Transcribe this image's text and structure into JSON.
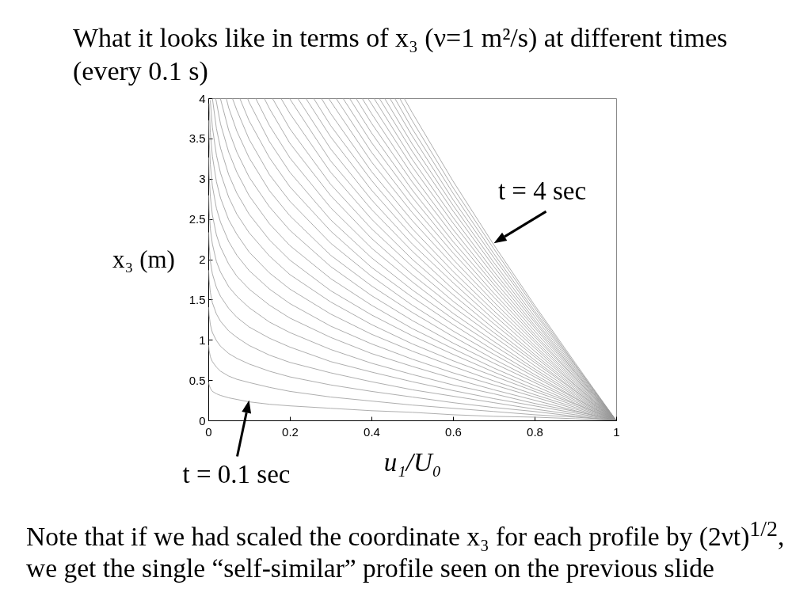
{
  "chart_data": {
    "type": "line",
    "title": "What it looks like in terms of x₃ (ν=1 m²/s) at different times (every 0.1 s)",
    "xlabel": "u₁/U₀",
    "ylabel": "x₃ (m)",
    "xlim": [
      0,
      1
    ],
    "ylim": [
      0,
      4
    ],
    "xticks": [
      0,
      0.2,
      0.4,
      0.6,
      0.8,
      1
    ],
    "yticks": [
      0,
      0.5,
      1,
      1.5,
      2,
      2.5,
      3,
      3.5,
      4
    ],
    "annotations": [
      {
        "text": "t = 4 sec",
        "x": 0.7,
        "y": 2.2
      },
      {
        "text": "t = 0.1 sec",
        "x": 0.1,
        "y": 0.25
      },
      "Note that if we had scaled the coordinate x₃ for each profile by (2νt)$^{1/2}$, we get the single “self-similar” profile seen on the previous slide"
    ],
    "series": [
      {
        "color": "#999999",
        "x": [
          1,
          0.9,
          0.8,
          0.7,
          0.6,
          0.5,
          0.4,
          0.3,
          0.2,
          0.15,
          0.1,
          0.07,
          0.05,
          0.03,
          0.02,
          0.01,
          0.005,
          0.002,
          0.001
        ],
        "values": [
          0,
          0.02,
          0.04,
          0.05,
          0.07,
          0.1,
          0.12,
          0.15,
          0.18,
          0.2,
          0.23,
          0.26,
          0.28,
          0.31,
          0.33,
          0.36,
          0.4,
          0.44,
          0.47
        ]
      },
      {
        "color": "#999999",
        "x": [
          1,
          0.9,
          0.8,
          0.7,
          0.6,
          0.5,
          0.4,
          0.3,
          0.2,
          0.15,
          0.1,
          0.07,
          0.05,
          0.03,
          0.02,
          0.01,
          0.005,
          0.002,
          0.001
        ],
        "values": [
          0,
          0.04,
          0.07,
          0.11,
          0.15,
          0.19,
          0.24,
          0.29,
          0.36,
          0.41,
          0.47,
          0.51,
          0.55,
          0.61,
          0.66,
          0.73,
          0.79,
          0.87,
          0.93
        ]
      },
      {
        "color": "#999999",
        "x": [
          1,
          0.9,
          0.8,
          0.7,
          0.6,
          0.5,
          0.4,
          0.3,
          0.2,
          0.15,
          0.1,
          0.07,
          0.05,
          0.03,
          0.02,
          0.01,
          0.005,
          0.002,
          0.001
        ],
        "values": [
          0,
          0.05,
          0.11,
          0.16,
          0.22,
          0.29,
          0.36,
          0.44,
          0.54,
          0.61,
          0.7,
          0.77,
          0.83,
          0.92,
          0.99,
          1.09,
          1.19,
          1.31,
          1.4
        ]
      },
      {
        "color": "#999999",
        "x": [
          1,
          0.9,
          0.8,
          0.7,
          0.6,
          0.5,
          0.4,
          0.3,
          0.2,
          0.15,
          0.1,
          0.07,
          0.05,
          0.03,
          0.02,
          0.01,
          0.005,
          0.002,
          0.001
        ],
        "values": [
          0,
          0.07,
          0.14,
          0.22,
          0.3,
          0.38,
          0.48,
          0.59,
          0.72,
          0.81,
          0.93,
          1.03,
          1.11,
          1.23,
          1.32,
          1.46,
          1.59,
          1.75,
          1.86
        ]
      },
      {
        "color": "#999999",
        "x": [
          1,
          0.9,
          0.8,
          0.7,
          0.6,
          0.5,
          0.4,
          0.3,
          0.2,
          0.15,
          0.1,
          0.07,
          0.05,
          0.03,
          0.02,
          0.01,
          0.005,
          0.002,
          0.001
        ],
        "values": [
          0,
          0.09,
          0.18,
          0.27,
          0.37,
          0.48,
          0.6,
          0.73,
          0.91,
          1.02,
          1.16,
          1.28,
          1.39,
          1.54,
          1.65,
          1.82,
          1.98,
          2.19,
          2.33
        ]
      },
      {
        "color": "#999999",
        "x": [
          1,
          0.9,
          0.8,
          0.7,
          0.6,
          0.5,
          0.4,
          0.3,
          0.2,
          0.15,
          0.1,
          0.07,
          0.05,
          0.03,
          0.02,
          0.01,
          0.005,
          0.002,
          0.001
        ],
        "values": [
          0,
          0.11,
          0.21,
          0.33,
          0.44,
          0.57,
          0.71,
          0.88,
          1.09,
          1.22,
          1.4,
          1.54,
          1.66,
          1.84,
          1.97,
          2.19,
          2.38,
          2.62,
          2.79
        ]
      },
      {
        "color": "#999999",
        "x": [
          1,
          0.9,
          0.8,
          0.7,
          0.6,
          0.5,
          0.4,
          0.3,
          0.2,
          0.15,
          0.1,
          0.07,
          0.05,
          0.03,
          0.02,
          0.01,
          0.005,
          0.002,
          0.001
        ],
        "values": [
          0,
          0.12,
          0.25,
          0.38,
          0.52,
          0.67,
          0.83,
          1.03,
          1.27,
          1.43,
          1.63,
          1.79,
          1.94,
          2.15,
          2.3,
          2.55,
          2.78,
          3.06,
          3.26
        ]
      },
      {
        "color": "#999999",
        "x": [
          1,
          0.9,
          0.8,
          0.7,
          0.6,
          0.5,
          0.4,
          0.3,
          0.2,
          0.15,
          0.1,
          0.07,
          0.05,
          0.03,
          0.02,
          0.01,
          0.005,
          0.002,
          0.001
        ],
        "values": [
          0,
          0.14,
          0.29,
          0.44,
          0.59,
          0.76,
          0.95,
          1.17,
          1.45,
          1.63,
          1.86,
          2.05,
          2.22,
          2.46,
          2.63,
          2.91,
          3.18,
          3.5,
          3.72
        ]
      },
      {
        "color": "#999999",
        "x": [
          1,
          0.9,
          0.8,
          0.7,
          0.6,
          0.5,
          0.4,
          0.3,
          0.2,
          0.15,
          0.1,
          0.07,
          0.05,
          0.03,
          0.02,
          0.01,
          0.005,
          0.002
        ],
        "values": [
          0,
          0.16,
          0.32,
          0.49,
          0.67,
          0.86,
          1.07,
          1.32,
          1.63,
          1.83,
          2.09,
          2.31,
          2.49,
          2.76,
          2.96,
          3.28,
          3.57,
          3.93
        ]
      },
      {
        "color": "#999999",
        "x": [
          1,
          0.9,
          0.8,
          0.7,
          0.6,
          0.5,
          0.4,
          0.3,
          0.2,
          0.15,
          0.1,
          0.07,
          0.05,
          0.03,
          0.02,
          0.01,
          0.005
        ],
        "values": [
          0,
          0.18,
          0.36,
          0.55,
          0.74,
          0.95,
          1.19,
          1.47,
          1.81,
          2.04,
          2.33,
          2.56,
          2.77,
          3.07,
          3.29,
          3.64,
          3.97
        ]
      },
      {
        "color": "#999999",
        "x": [
          1,
          0.9,
          0.8,
          0.7,
          0.6,
          0.5,
          0.4,
          0.3,
          0.2,
          0.15,
          0.1,
          0.07,
          0.05,
          0.03,
          0.02,
          0.01
        ],
        "values": [
          0,
          0.2,
          0.39,
          0.6,
          0.82,
          1.05,
          1.31,
          1.61,
          1.99,
          2.24,
          2.56,
          2.82,
          3.05,
          3.38,
          3.62,
          4
        ]
      },
      {
        "color": "#999999",
        "x": [
          1,
          0.9,
          0.8,
          0.7,
          0.6,
          0.5,
          0.4,
          0.3,
          0.2,
          0.15,
          0.1,
          0.07,
          0.05,
          0.03,
          0.02,
          0.018
        ],
        "values": [
          0,
          0.21,
          0.43,
          0.65,
          0.89,
          1.14,
          1.43,
          1.76,
          2.17,
          2.44,
          2.79,
          3.08,
          3.33,
          3.68,
          3.95,
          4
        ]
      },
      {
        "color": "#999999",
        "x": [
          1,
          0.9,
          0.8,
          0.7,
          0.6,
          0.5,
          0.4,
          0.3,
          0.2,
          0.15,
          0.1,
          0.07,
          0.05,
          0.03,
          0.03
        ],
        "values": [
          0,
          0.23,
          0.47,
          0.71,
          0.96,
          1.24,
          1.55,
          1.91,
          2.36,
          2.65,
          3.02,
          3.33,
          3.6,
          3.99,
          4
        ]
      },
      {
        "color": "#999999",
        "x": [
          1,
          0.9,
          0.8,
          0.7,
          0.6,
          0.5,
          0.4,
          0.3,
          0.2,
          0.15,
          0.1,
          0.07,
          0.05,
          0.044
        ],
        "values": [
          0,
          0.25,
          0.5,
          0.76,
          1.04,
          1.34,
          1.67,
          2.05,
          2.54,
          2.85,
          3.26,
          3.59,
          3.88,
          4
        ]
      },
      {
        "color": "#999999",
        "x": [
          1,
          0.9,
          0.8,
          0.7,
          0.6,
          0.5,
          0.4,
          0.3,
          0.2,
          0.15,
          0.1,
          0.07,
          0.059
        ],
        "values": [
          0,
          0.27,
          0.54,
          0.82,
          1.11,
          1.43,
          1.79,
          2.2,
          2.72,
          3.05,
          3.49,
          3.85,
          4
        ]
      },
      {
        "color": "#999999",
        "x": [
          1,
          0.9,
          0.8,
          0.7,
          0.6,
          0.5,
          0.4,
          0.3,
          0.2,
          0.15,
          0.1,
          0.077
        ],
        "values": [
          0,
          0.28,
          0.57,
          0.87,
          1.19,
          1.53,
          1.9,
          2.35,
          2.9,
          3.26,
          3.72,
          4
        ]
      },
      {
        "color": "#999999",
        "x": [
          1,
          0.9,
          0.8,
          0.7,
          0.6,
          0.5,
          0.4,
          0.3,
          0.2,
          0.15,
          0.1,
          0.096
        ],
        "values": [
          0,
          0.3,
          0.61,
          0.93,
          1.26,
          1.62,
          2.02,
          2.49,
          3.08,
          3.46,
          3.95,
          4
        ]
      },
      {
        "color": "#999999",
        "x": [
          1,
          0.9,
          0.8,
          0.7,
          0.6,
          0.5,
          0.4,
          0.3,
          0.2,
          0.15,
          0.116
        ],
        "values": [
          0,
          0.32,
          0.64,
          0.98,
          1.33,
          1.72,
          2.14,
          2.64,
          3.26,
          3.66,
          4
        ]
      },
      {
        "color": "#999999",
        "x": [
          1,
          0.9,
          0.8,
          0.7,
          0.6,
          0.5,
          0.4,
          0.3,
          0.2,
          0.15,
          0.137
        ],
        "values": [
          0,
          0.34,
          0.68,
          1.04,
          1.41,
          1.81,
          2.26,
          2.79,
          3.44,
          3.87,
          4
        ]
      },
      {
        "color": "#999999",
        "x": [
          1,
          0.9,
          0.8,
          0.7,
          0.6,
          0.5,
          0.4,
          0.3,
          0.2,
          0.157
        ],
        "values": [
          0,
          0.36,
          0.72,
          1.09,
          1.48,
          1.91,
          2.38,
          2.93,
          3.62,
          4
        ]
      },
      {
        "color": "#999999",
        "x": [
          1,
          0.9,
          0.8,
          0.7,
          0.6,
          0.5,
          0.4,
          0.3,
          0.2,
          0.178
        ],
        "values": [
          0,
          0.37,
          0.75,
          1.14,
          1.56,
          2.0,
          2.5,
          3.08,
          3.81,
          4
        ]
      },
      {
        "color": "#999999",
        "x": [
          1,
          0.9,
          0.8,
          0.7,
          0.6,
          0.5,
          0.4,
          0.3,
          0.2,
          0.199
        ],
        "values": [
          0,
          0.39,
          0.79,
          1.2,
          1.63,
          2.1,
          2.62,
          3.22,
          3.99,
          4
        ]
      },
      {
        "color": "#999999",
        "x": [
          1,
          0.9,
          0.8,
          0.7,
          0.6,
          0.5,
          0.4,
          0.3,
          0.219
        ],
        "values": [
          0,
          0.41,
          0.82,
          1.25,
          1.71,
          2.19,
          2.74,
          3.37,
          4
        ]
      },
      {
        "color": "#999999",
        "x": [
          1,
          0.9,
          0.8,
          0.7,
          0.6,
          0.5,
          0.4,
          0.3,
          0.239
        ],
        "values": [
          0,
          0.43,
          0.86,
          1.31,
          1.78,
          2.29,
          2.86,
          3.52,
          4
        ]
      },
      {
        "color": "#999999",
        "x": [
          1,
          0.9,
          0.8,
          0.7,
          0.6,
          0.5,
          0.4,
          0.3,
          0.258
        ],
        "values": [
          0,
          0.44,
          0.9,
          1.36,
          1.85,
          2.38,
          2.98,
          3.66,
          4
        ]
      },
      {
        "color": "#999999",
        "x": [
          1,
          0.9,
          0.8,
          0.7,
          0.6,
          0.5,
          0.4,
          0.3,
          0.277
        ],
        "values": [
          0,
          0.46,
          0.93,
          1.42,
          1.93,
          2.48,
          3.09,
          3.81,
          4
        ]
      },
      {
        "color": "#999999",
        "x": [
          1,
          0.9,
          0.8,
          0.7,
          0.6,
          0.5,
          0.4,
          0.3,
          0.295
        ],
        "values": [
          0,
          0.48,
          0.97,
          1.47,
          2.0,
          2.58,
          3.21,
          3.96,
          4
        ]
      },
      {
        "color": "#999999",
        "x": [
          1,
          0.9,
          0.8,
          0.7,
          0.6,
          0.5,
          0.4,
          0.313
        ],
        "values": [
          0,
          0.5,
          1.0,
          1.53,
          2.08,
          2.67,
          3.33,
          4
        ]
      },
      {
        "color": "#999999",
        "x": [
          1,
          0.9,
          0.8,
          0.7,
          0.6,
          0.5,
          0.4,
          0.33
        ],
        "values": [
          0,
          0.52,
          1.04,
          1.58,
          2.15,
          2.77,
          3.45,
          4
        ]
      },
      {
        "color": "#999999",
        "x": [
          1,
          0.9,
          0.8,
          0.7,
          0.6,
          0.5,
          0.4,
          0.346
        ],
        "values": [
          0,
          0.53,
          1.07,
          1.64,
          2.22,
          2.86,
          3.57,
          4
        ]
      },
      {
        "color": "#999999",
        "x": [
          1,
          0.9,
          0.8,
          0.7,
          0.6,
          0.5,
          0.4,
          0.362
        ],
        "values": [
          0,
          0.55,
          1.11,
          1.69,
          2.3,
          2.96,
          3.69,
          4
        ]
      },
      {
        "color": "#999999",
        "x": [
          1,
          0.9,
          0.8,
          0.7,
          0.6,
          0.5,
          0.4,
          0.377
        ],
        "values": [
          0,
          0.57,
          1.15,
          1.74,
          2.37,
          3.05,
          3.81,
          4
        ]
      },
      {
        "color": "#999999",
        "x": [
          1,
          0.9,
          0.8,
          0.7,
          0.6,
          0.5,
          0.4,
          0.391
        ],
        "values": [
          0,
          0.59,
          1.18,
          1.8,
          2.45,
          3.15,
          3.93,
          4
        ]
      },
      {
        "color": "#999999",
        "x": [
          1,
          0.9,
          0.8,
          0.7,
          0.6,
          0.5,
          0.406
        ],
        "values": [
          0,
          0.6,
          1.22,
          1.85,
          2.52,
          3.24,
          4
        ]
      },
      {
        "color": "#999999",
        "x": [
          1,
          0.9,
          0.8,
          0.7,
          0.6,
          0.5,
          0.419
        ],
        "values": [
          0,
          0.62,
          1.25,
          1.91,
          2.6,
          3.34,
          4
        ]
      },
      {
        "color": "#999999",
        "x": [
          1,
          0.9,
          0.8,
          0.7,
          0.6,
          0.5,
          0.432
        ],
        "values": [
          0,
          0.64,
          1.29,
          1.96,
          2.67,
          3.43,
          4
        ]
      },
      {
        "color": "#999999",
        "x": [
          1,
          0.9,
          0.8,
          0.7,
          0.6,
          0.5,
          0.445
        ],
        "values": [
          0,
          0.66,
          1.33,
          2.02,
          2.74,
          3.53,
          4
        ]
      },
      {
        "color": "#999999",
        "x": [
          1,
          0.9,
          0.8,
          0.7,
          0.6,
          0.5,
          0.457
        ],
        "values": [
          0,
          0.68,
          1.36,
          2.07,
          2.82,
          3.62,
          4
        ]
      },
      {
        "color": "#999999",
        "x": [
          1,
          0.9,
          0.8,
          0.7,
          0.6,
          0.5,
          0.469
        ],
        "values": [
          0,
          0.69,
          1.4,
          2.13,
          2.89,
          3.72,
          4
        ]
      },
      {
        "color": "#999999",
        "x": [
          1,
          0.9,
          0.8,
          0.7,
          0.6,
          0.5,
          0.48
        ],
        "values": [
          0,
          0.71,
          1.43,
          2.18,
          2.97,
          3.82,
          4
        ]
      }
    ]
  }
}
